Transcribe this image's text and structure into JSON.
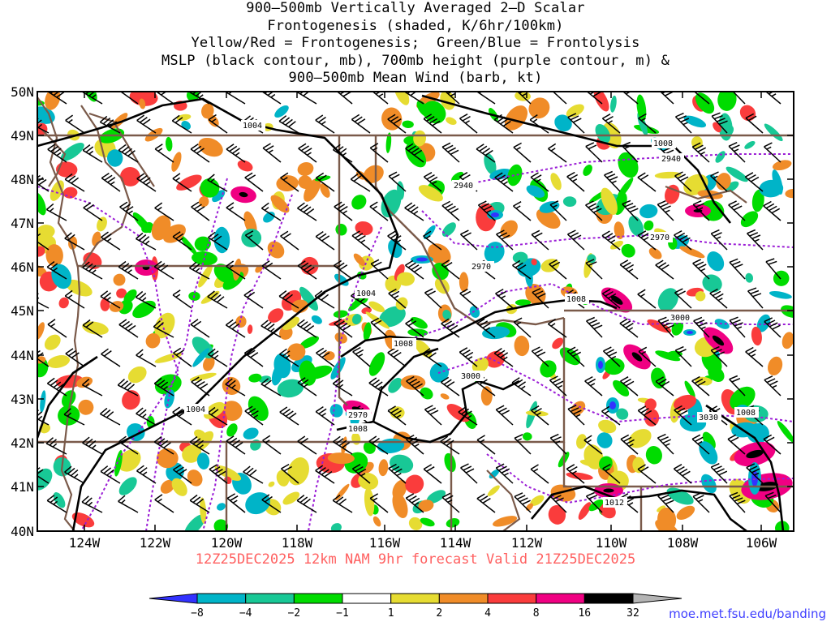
{
  "titles": [
    "900–500mb Vertically Averaged 2–D Scalar",
    "Frontogenesis (shaded, K/6hr/100km)",
    "Yellow/Red = Frontogenesis;  Green/Blue = Frontolysis",
    "MSLP (black contour, mb), 700mb height (purple contour, m) &",
    "900–500mb Mean Wind (barb, kt)"
  ],
  "footer": "12Z25DEC2025 12km NAM 9hr forecast Valid 21Z25DEC2025",
  "credit": "moe.met.fsu.edu/banding",
  "axes": {
    "lat_labels": [
      "50N",
      "49N",
      "48N",
      "47N",
      "46N",
      "45N",
      "44N",
      "43N",
      "42N",
      "41N",
      "40N"
    ],
    "lon_labels": [
      "124W",
      "122W",
      "120W",
      "118W",
      "116W",
      "114W",
      "112W",
      "110W",
      "108W",
      "106W"
    ]
  },
  "mslp_labels": [
    "1004",
    "1004",
    "1004",
    "1008",
    "1008",
    "1008",
    "1008",
    "1008",
    "1012"
  ],
  "height_labels": [
    "2940",
    "2940",
    "2970",
    "2970",
    "2970",
    "3000",
    "3000",
    "3030"
  ],
  "colorbar": {
    "ticks": [
      "−8",
      "−4",
      "−2",
      "−1",
      "1",
      "2",
      "4",
      "8",
      "16",
      "32"
    ],
    "colors": [
      "#3232ff",
      "#00b4c8",
      "#18c896",
      "#00dc00",
      "#ffffff",
      "#e6dc32",
      "#f08c28",
      "#fa3c3c",
      "#f00082",
      "#000000",
      "#b4b4b4"
    ]
  },
  "colors": {
    "state_border": "#7a5a4a",
    "mslp": "#000000",
    "height": "#9b1ed6",
    "footer": "#ff6060",
    "credit": "#4040ff"
  }
}
